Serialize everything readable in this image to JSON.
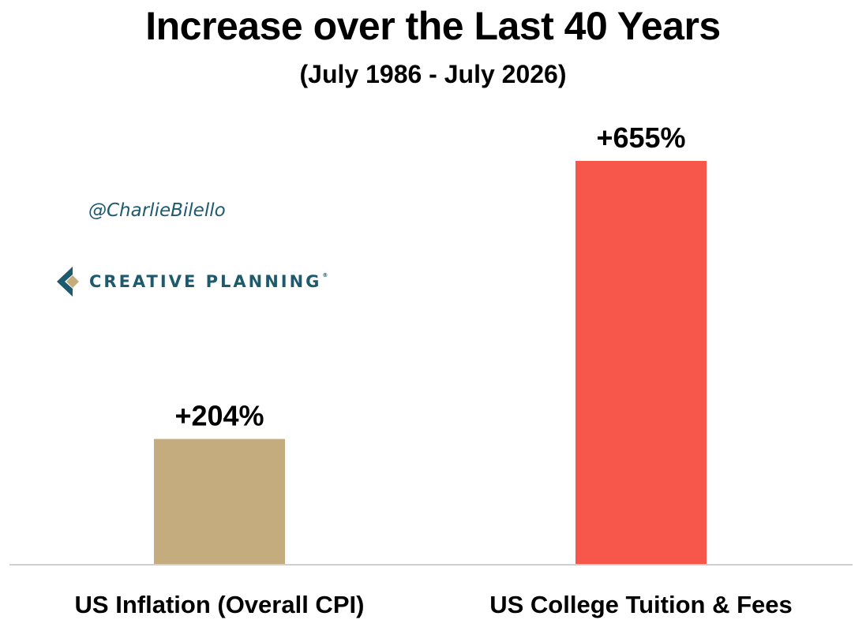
{
  "chart_data": {
    "type": "bar",
    "title": "Increase over the Last 40 Years",
    "subtitle": "(July 1986 - July 2026)",
    "categories": [
      "US Inflation (Overall CPI)",
      "US College Tuition & Fees"
    ],
    "values": [
      204,
      655
    ],
    "data_labels": [
      "+204%",
      "+655%"
    ],
    "colors": [
      "#c4ac7e",
      "#f7564a"
    ],
    "ylim": [
      0,
      655
    ],
    "grid": false,
    "legend": "none"
  },
  "watermark": {
    "handle": "@CharlieBilello",
    "brand": "CREATIVE PLANNING",
    "brand_mark": "®",
    "brand_color": "#1d5a6d",
    "brand_accent": "#c4ac7e"
  }
}
